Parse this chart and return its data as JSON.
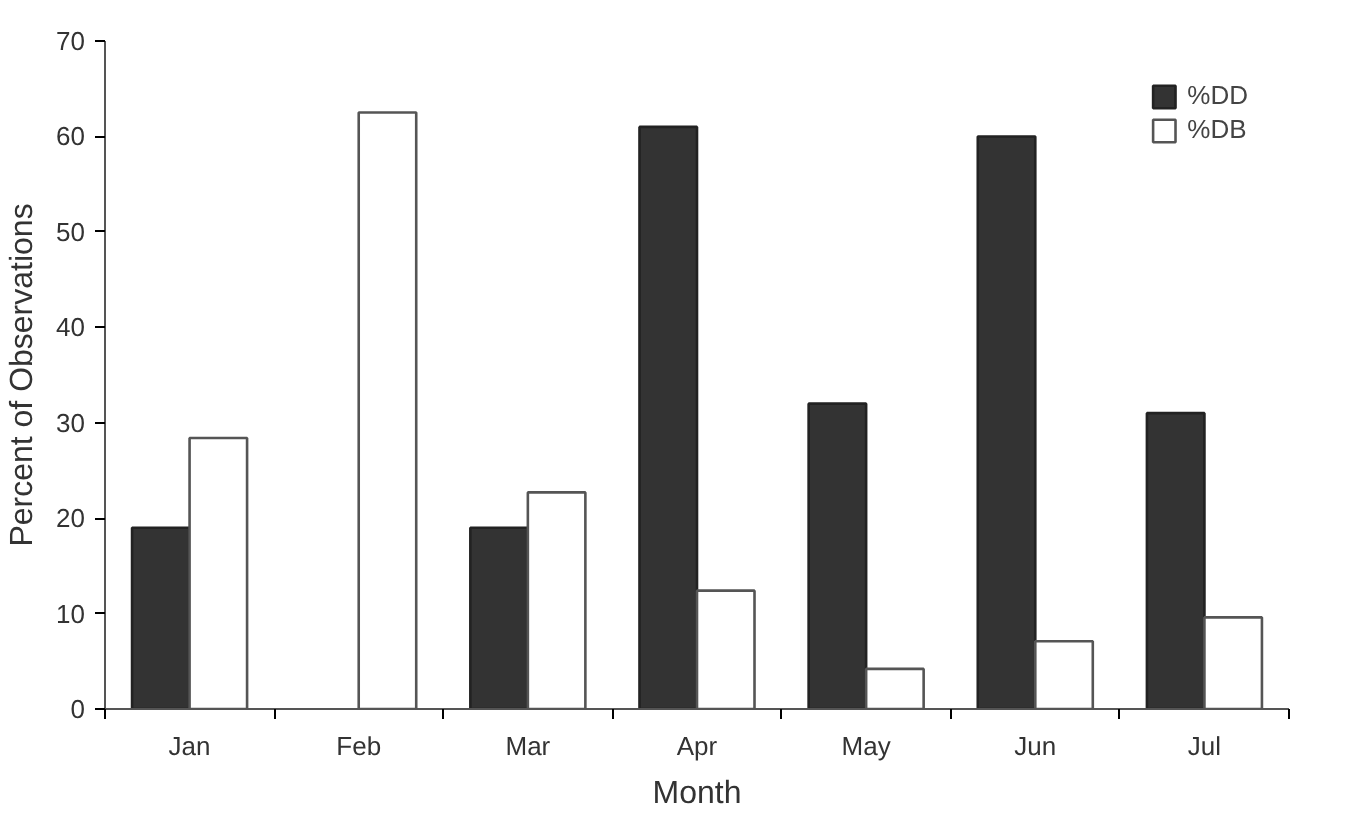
{
  "chart_data": {
    "type": "bar",
    "xlabel": "Month",
    "ylabel": "Percent of Observations",
    "categories": [
      "Jan",
      "Feb",
      "Mar",
      "Apr",
      "May",
      "Jun",
      "Jul"
    ],
    "series": [
      {
        "name": "%DD",
        "color": "#333333",
        "values": [
          19.0,
          null,
          19.0,
          61.0,
          32.0,
          60.0,
          31.0
        ]
      },
      {
        "name": "%DB",
        "color": "#ffffff",
        "values": [
          28.4,
          62.5,
          22.7,
          12.4,
          4.2,
          7.1,
          9.6
        ]
      }
    ],
    "ylim": [
      0,
      70
    ],
    "yticks": [
      0,
      10,
      20,
      30,
      40,
      50,
      60,
      70
    ],
    "grid": false,
    "legend": "top right"
  }
}
